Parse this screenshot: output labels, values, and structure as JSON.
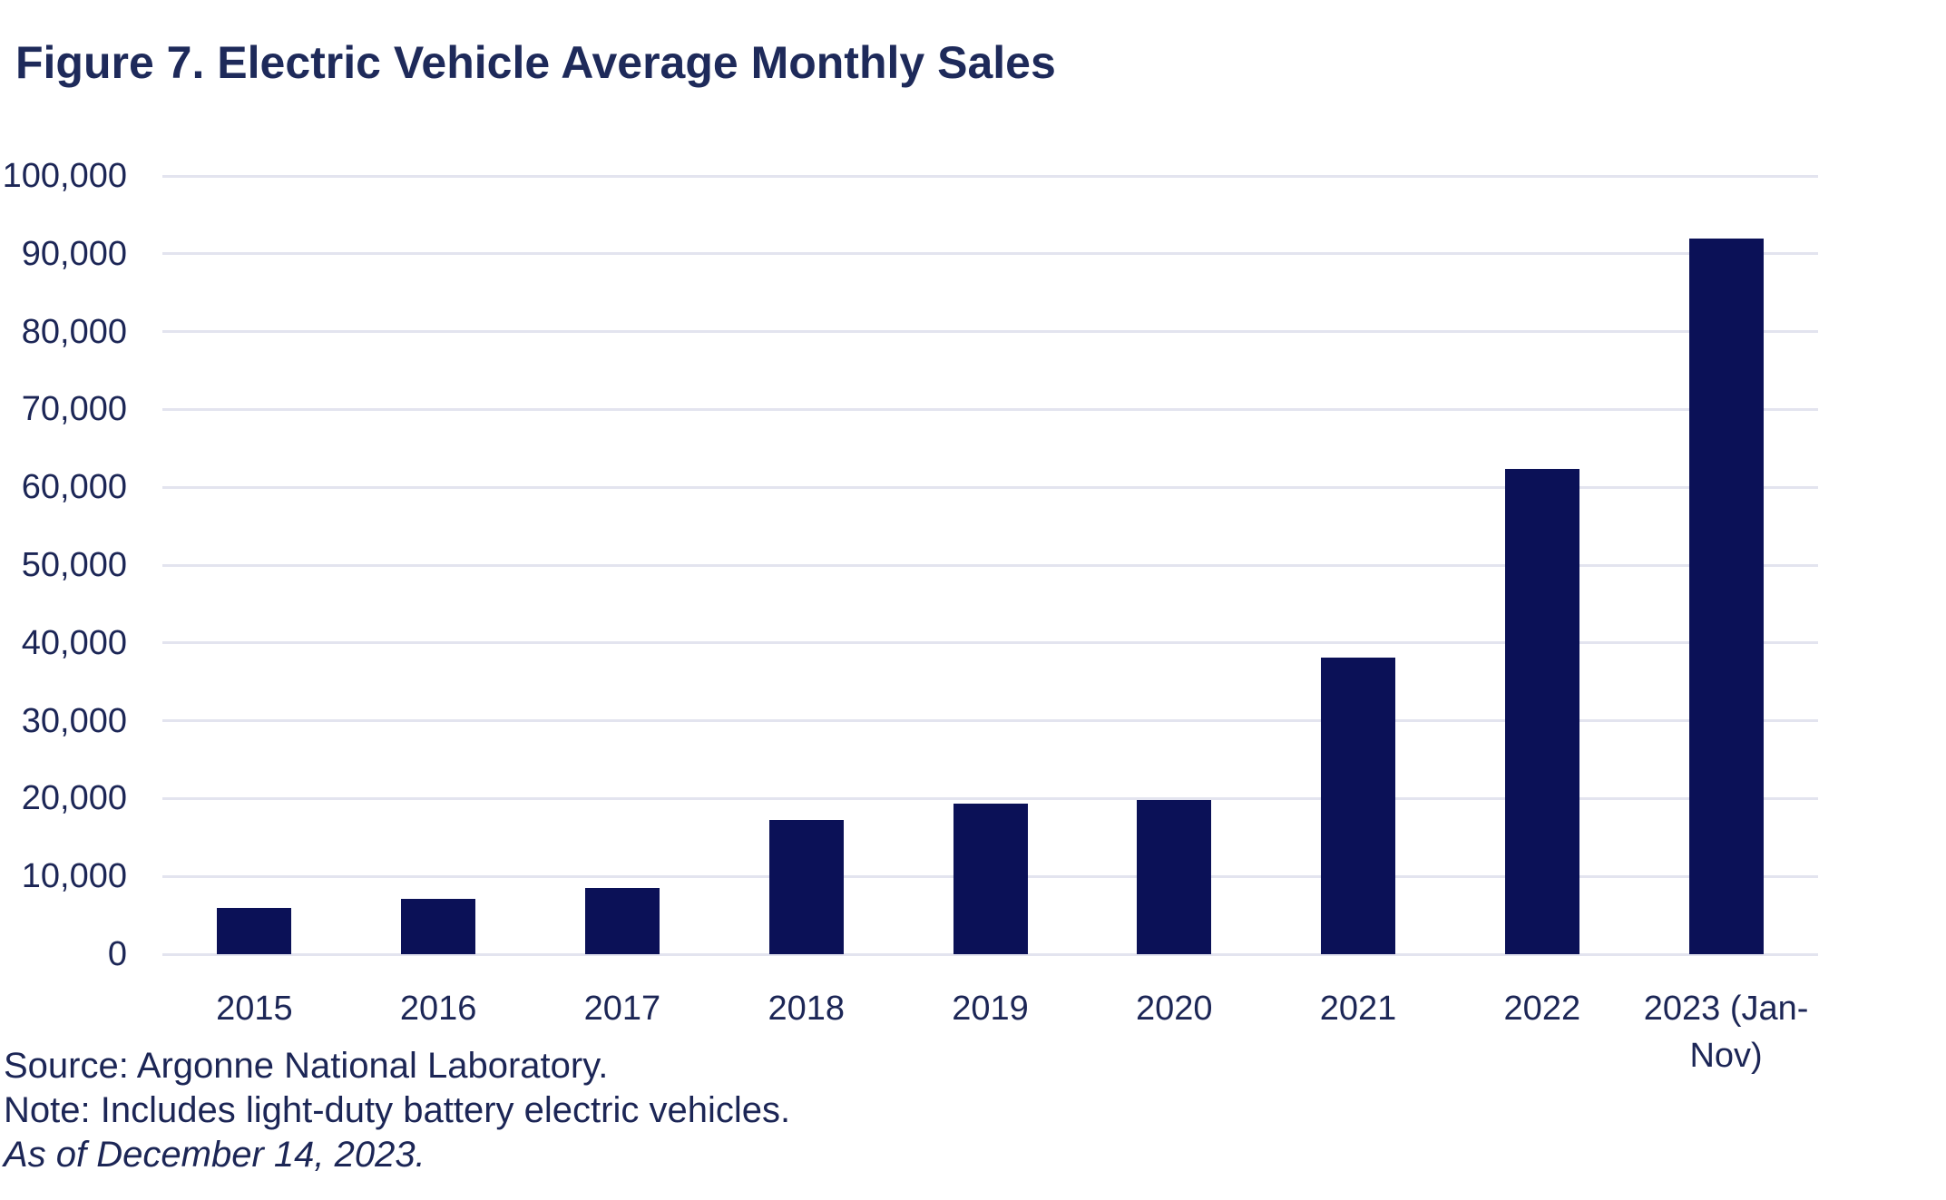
{
  "chart_data": {
    "type": "bar",
    "title": "Figure 7. Electric Vehicle Average Monthly Sales",
    "categories": [
      "2015",
      "2016",
      "2017",
      "2018",
      "2019",
      "2020",
      "2021",
      "2022",
      "2023 (Jan-Nov)"
    ],
    "values": [
      5900,
      7100,
      8500,
      17200,
      19400,
      19800,
      38150,
      62300,
      91900
    ],
    "xlabel": "",
    "ylabel": "",
    "ylim": [
      0,
      100000
    ],
    "yticks": [
      0,
      10000,
      20000,
      30000,
      40000,
      50000,
      60000,
      70000,
      80000,
      90000,
      100000
    ],
    "ytick_labels": [
      "0",
      "10,000",
      "20,000",
      "30,000",
      "40,000",
      "50,000",
      "60,000",
      "70,000",
      "80,000",
      "90,000",
      "100,000"
    ],
    "grid": true,
    "legend": "none",
    "bar_color": "#0B1157",
    "gridline_color": "#E3E4EF",
    "text_color": "#1C2656",
    "title_color": "#1E2A5A"
  },
  "footer": {
    "source": "Source: Argonne National Laboratory.",
    "note": "Note: Includes light-duty battery electric vehicles.",
    "as_of": "As of December 14, 2023."
  }
}
